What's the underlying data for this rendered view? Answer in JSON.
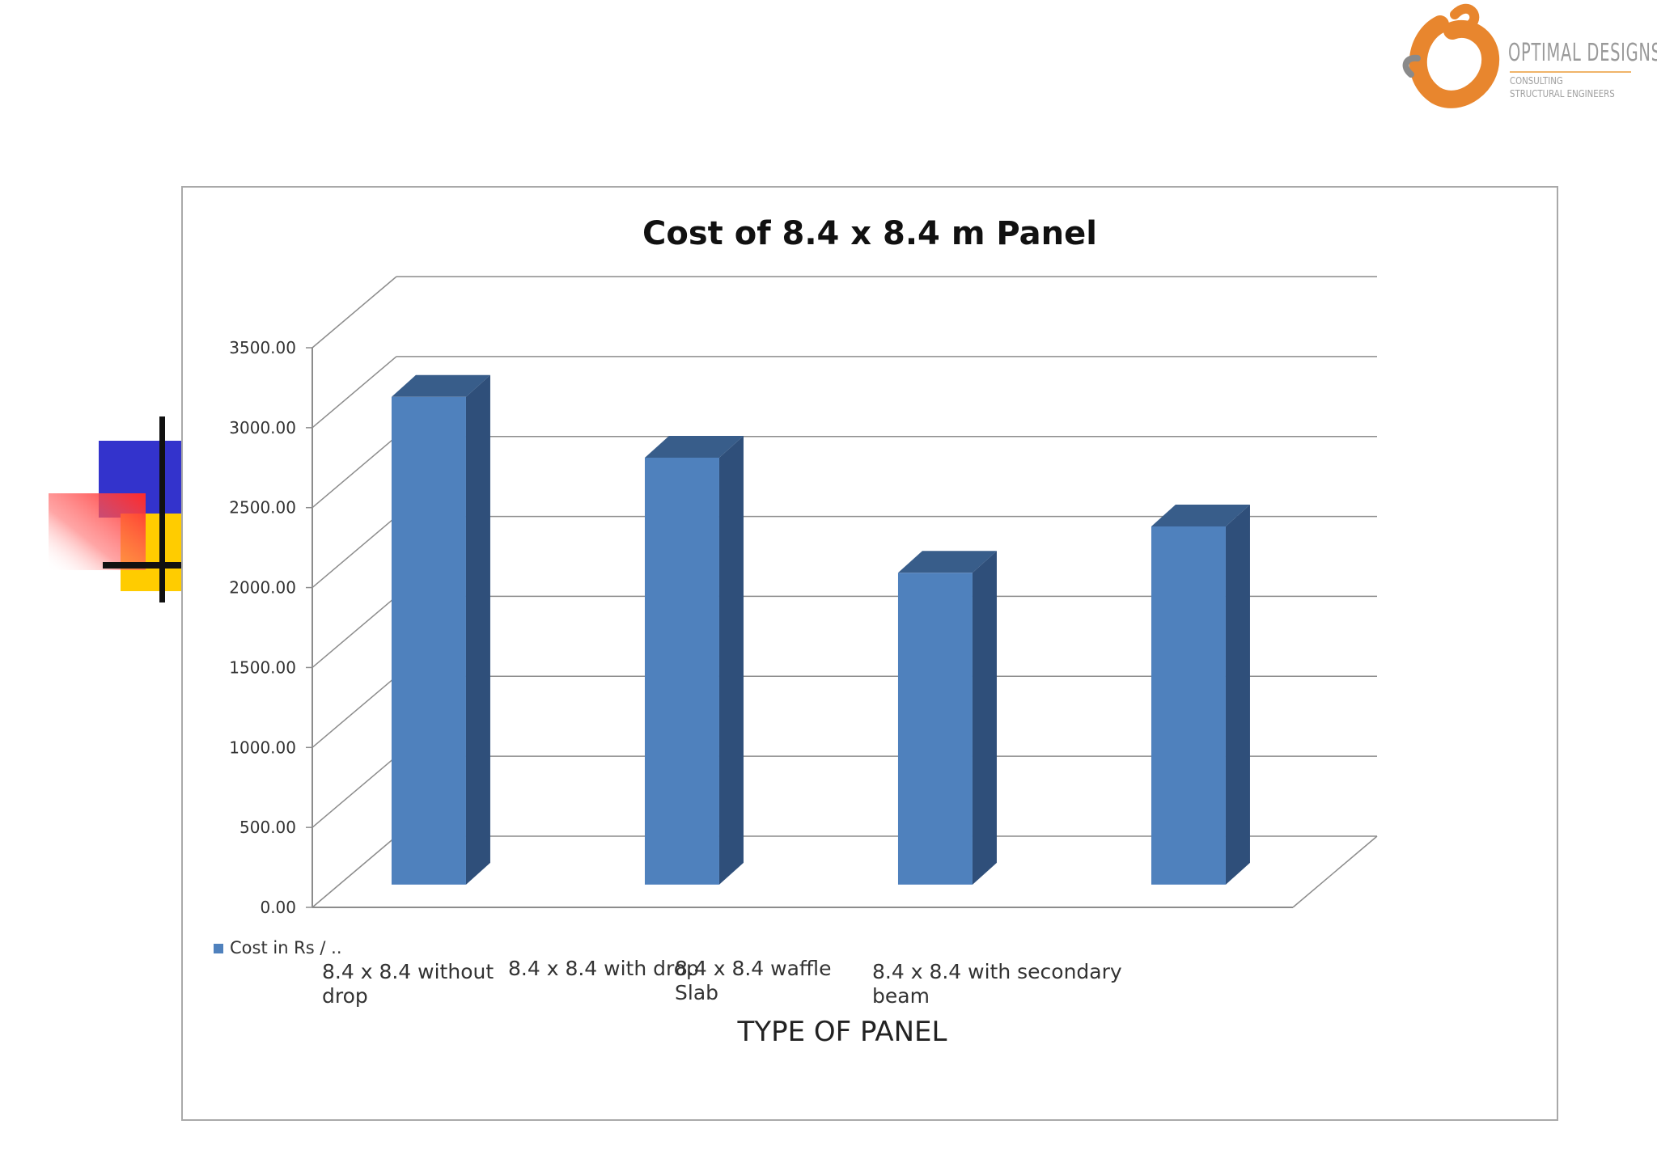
{
  "logo": {
    "title": "OPTIMAL DESIGNS",
    "subtitle": "CONSULTING STRUCTURAL ENGINEERS",
    "colors": {
      "orange": "#e8862e",
      "gray": "#7f7f7f"
    }
  },
  "decoration": {
    "colors": {
      "blue": "#3333cc",
      "red": "#ff3333",
      "yellow": "#ffcc00",
      "black": "#111111"
    }
  },
  "chart_data": {
    "type": "bar",
    "style": "3d-column",
    "title": "Cost of 8.4 x 8.4 m Panel",
    "xlabel": "TYPE OF PANEL",
    "ylabel": "",
    "ylim": [
      0,
      3500
    ],
    "yticks": [
      "0.00",
      "500.00",
      "1000.00",
      "1500.00",
      "2000.00",
      "2500.00",
      "3000.00",
      "3500.00"
    ],
    "ytick_values": [
      0,
      500,
      1000,
      1500,
      2000,
      2500,
      3000,
      3500
    ],
    "grid": true,
    "legend_position": "bottom-left",
    "categories": [
      [
        "8.4 x 8.4 without",
        "drop"
      ],
      [
        "8.4 x 8.4 with drop"
      ],
      [
        "8.4 x 8.4 waffle",
        "Slab"
      ],
      [
        "8.4 x 8.4 with secondary",
        "beam"
      ]
    ],
    "series": [
      {
        "name": "Cost in Rs / ..",
        "values": [
          3050,
          2670,
          1950,
          2240
        ]
      }
    ],
    "colors": {
      "bar_front": "#4f81bd",
      "bar_side": "#2f4f7a",
      "bar_top": "#385d8a",
      "grid": "#8c8c8c"
    }
  }
}
